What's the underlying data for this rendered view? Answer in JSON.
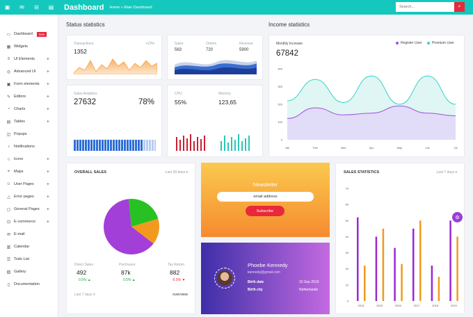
{
  "topbar": {
    "brand": "Dashboard",
    "breadcrumb": "Home » Main Dashboard",
    "search_placeholder": "Search...",
    "icons": [
      "monitor-icon",
      "mail-icon",
      "envelope-icon",
      "grid-icon"
    ]
  },
  "sidebar": {
    "items": [
      {
        "label": "Dashboard",
        "icon": "monitor-icon",
        "badge": "new",
        "plus": false
      },
      {
        "label": "Widgets",
        "icon": "widgets-icon",
        "plus": false
      },
      {
        "label": "UI Elements",
        "icon": "layers-icon",
        "plus": true
      },
      {
        "label": "Advanced UI",
        "icon": "adv-icon",
        "plus": true
      },
      {
        "label": "Form elements",
        "icon": "form-icon",
        "plus": true
      },
      {
        "label": "Editors",
        "icon": "editor-icon",
        "plus": true
      },
      {
        "label": "Charts",
        "icon": "chart-icon",
        "plus": true
      },
      {
        "label": "Tables",
        "icon": "table-icon",
        "plus": true
      },
      {
        "label": "Popups",
        "icon": "popup-icon",
        "plus": false
      },
      {
        "label": "Notifications",
        "icon": "bell-icon",
        "plus": false
      },
      {
        "label": "Icons",
        "icon": "star-icon",
        "plus": true
      },
      {
        "label": "Maps",
        "icon": "map-icon",
        "plus": true
      },
      {
        "label": "User Pages",
        "icon": "user-icon",
        "plus": true
      },
      {
        "label": "Error pages",
        "icon": "warning-icon",
        "plus": true
      },
      {
        "label": "General Pages",
        "icon": "page-icon",
        "plus": true
      },
      {
        "label": "E-commerce",
        "icon": "cart-icon",
        "plus": true
      },
      {
        "label": "E-mail",
        "icon": "mail-icon",
        "plus": false
      },
      {
        "label": "Calendar",
        "icon": "calendar-icon",
        "plus": false
      },
      {
        "label": "Todo List",
        "icon": "list-icon",
        "plus": false
      },
      {
        "label": "Gallery",
        "icon": "image-icon",
        "plus": false
      },
      {
        "label": "Documentation",
        "icon": "doc-icon",
        "plus": false
      }
    ]
  },
  "status": {
    "title": "Status statistics",
    "transactions": {
      "label": "Transactions",
      "value": "1352",
      "pct": "+23%"
    },
    "sales": {
      "sales_label": "Sales",
      "sales_value": "563",
      "orders_label": "Orders",
      "orders_value": "720",
      "revenue_label": "Revenue",
      "revenue_value": "5900"
    },
    "analytics": {
      "label": "Sales Analytics",
      "value": "27632",
      "pct": "78%"
    },
    "cpu": {
      "cpu_label": "CPU",
      "cpu_value": "55%",
      "mem_label": "Memory",
      "mem_value": "123,65"
    }
  },
  "income": {
    "title": "Income statistics",
    "subtitle": "Monthly Increase",
    "value": "67842",
    "legend": [
      "Register User",
      "Premium User"
    ],
    "colors": {
      "register": "#a24fd8",
      "premium": "#35d3c8"
    }
  },
  "chart_data": [
    {
      "type": "line",
      "title": "",
      "x": [
        "Jan",
        "Feb",
        "Mar",
        "Apr",
        "May",
        "Jun",
        "Jul"
      ],
      "yticks": [
        0,
        100,
        200,
        300,
        400
      ],
      "ylim": [
        0,
        400
      ],
      "series": [
        {
          "name": "Register User",
          "values": [
            120,
            180,
            140,
            150,
            190,
            150,
            135
          ]
        },
        {
          "name": "Premium User",
          "values": [
            220,
            340,
            210,
            360,
            200,
            360,
            200
          ]
        }
      ]
    },
    {
      "type": "pie",
      "title": "OVERALL SALES",
      "categories": [
        "Purple",
        "Orange",
        "Green"
      ],
      "values": [
        63,
        15,
        22
      ]
    },
    {
      "type": "bar",
      "title": "SALES STATISTICS",
      "categories": [
        "2014",
        "2015",
        "2016",
        "2017",
        "2018",
        "2019"
      ],
      "yticks": [
        0,
        10,
        20,
        30,
        40,
        50,
        60,
        70
      ],
      "ylim": [
        0,
        70
      ],
      "series": [
        {
          "values": [
            52,
            40,
            33,
            45,
            22,
            50
          ]
        },
        {
          "values": [
            22,
            45,
            23,
            50,
            15,
            40
          ]
        }
      ]
    }
  ],
  "overall": {
    "title": "OVERALL SALES",
    "filter": "Last 30 days",
    "footer_link": "Last 7 days",
    "footer_right": "overview",
    "stats": [
      {
        "label": "Direct Sales",
        "value": "492",
        "change": "0.5%",
        "dir": "up"
      },
      {
        "label": "Purchases",
        "value": "87k",
        "change": "0.5%",
        "dir": "up"
      },
      {
        "label": "Tax Return",
        "value": "882",
        "change": "-0.5%",
        "dir": "down"
      }
    ]
  },
  "newsletter": {
    "title": "Newsletter",
    "email": "email address",
    "button": "Subscribe"
  },
  "profile": {
    "name": "Phoebe Kennedy",
    "email": "kennedy@gmail.com",
    "birth_label": "Birth date",
    "birth_value": "10 Sep 2019",
    "city_label": "Birth city",
    "city_value": "Netherlands"
  },
  "sales_stats": {
    "title": "SALES STATISTICS",
    "filter": "Last 7 days"
  }
}
